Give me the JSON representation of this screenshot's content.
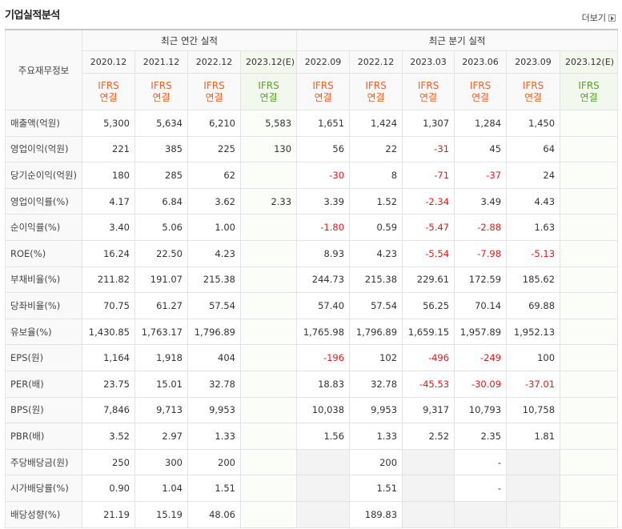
{
  "header": {
    "title": "기업실적분석",
    "more": "더보기"
  },
  "table": {
    "corner": "주요재무정보",
    "annual": {
      "label": "최근 연간 실적",
      "periods": [
        {
          "period": "2020.12",
          "standard": "IFRS",
          "consolidation": "연결"
        },
        {
          "period": "2021.12",
          "standard": "IFRS",
          "consolidation": "연결"
        },
        {
          "period": "2022.12",
          "standard": "IFRS",
          "consolidation": "연결"
        },
        {
          "period": "2023.12(E)",
          "standard": "IFRS",
          "consolidation": "연결"
        }
      ]
    },
    "quarterly": {
      "label": "최근 분기 실적",
      "periods": [
        {
          "period": "2022.09",
          "standard": "IFRS",
          "consolidation": "연결"
        },
        {
          "period": "2022.12",
          "standard": "IFRS",
          "consolidation": "연결"
        },
        {
          "period": "2023.03",
          "standard": "IFRS",
          "consolidation": "연결"
        },
        {
          "period": "2023.06",
          "standard": "IFRS",
          "consolidation": "연결"
        },
        {
          "period": "2023.09",
          "standard": "IFRS",
          "consolidation": "연결"
        },
        {
          "period": "2023.12(E)",
          "standard": "IFRS",
          "consolidation": "연결"
        }
      ]
    },
    "sections": [
      [
        {
          "label": "매출액(억원)",
          "values": [
            "5,300",
            "5,634",
            "6,210",
            "5,583",
            "1,651",
            "1,424",
            "1,307",
            "1,284",
            "1,450",
            null
          ]
        },
        {
          "label": "영업이익(억원)",
          "values": [
            "221",
            "385",
            "225",
            "130",
            "56",
            "22",
            "-31",
            "45",
            "64",
            null
          ]
        },
        {
          "label": "당기순이익(억원)",
          "values": [
            "180",
            "285",
            "62",
            null,
            "-30",
            "8",
            "-71",
            "-37",
            "24",
            null
          ]
        }
      ],
      [
        {
          "label": "영업이익률(%)",
          "values": [
            "4.17",
            "6.84",
            "3.62",
            "2.33",
            "3.39",
            "1.52",
            "-2.34",
            "3.49",
            "4.43",
            null
          ]
        },
        {
          "label": "순이익률(%)",
          "values": [
            "3.40",
            "5.06",
            "1.00",
            null,
            "-1.80",
            "0.59",
            "-5.47",
            "-2.88",
            "1.63",
            null
          ]
        },
        {
          "label": "ROE(%)",
          "values": [
            "16.24",
            "22.50",
            "4.23",
            null,
            "8.93",
            "4.23",
            "-5.54",
            "-7.98",
            "-5.13",
            null
          ]
        }
      ],
      [
        {
          "label": "부채비율(%)",
          "values": [
            "211.82",
            "191.07",
            "215.38",
            null,
            "244.73",
            "215.38",
            "229.61",
            "172.59",
            "185.62",
            null
          ]
        },
        {
          "label": "당좌비율(%)",
          "values": [
            "70.75",
            "61.27",
            "57.54",
            null,
            "57.40",
            "57.54",
            "56.25",
            "70.14",
            "69.88",
            null
          ]
        },
        {
          "label": "유보율(%)",
          "values": [
            "1,430.85",
            "1,763.17",
            "1,796.89",
            null,
            "1,765.98",
            "1,796.89",
            "1,659.15",
            "1,957.89",
            "1,952.13",
            null
          ]
        }
      ],
      [
        {
          "label": "EPS(원)",
          "values": [
            "1,164",
            "1,918",
            "404",
            null,
            "-196",
            "102",
            "-496",
            "-249",
            "100",
            null
          ]
        },
        {
          "label": "PER(배)",
          "values": [
            "23.75",
            "15.01",
            "32.78",
            null,
            "18.83",
            "32.78",
            "-45.53",
            "-30.09",
            "-37.01",
            null
          ]
        },
        {
          "label": "BPS(원)",
          "values": [
            "7,846",
            "9,713",
            "9,953",
            null,
            "10,038",
            "9,953",
            "9,317",
            "10,793",
            "10,758",
            null
          ]
        },
        {
          "label": "PBR(배)",
          "values": [
            "3.52",
            "2.97",
            "1.33",
            null,
            "1.56",
            "1.33",
            "2.52",
            "2.35",
            "1.81",
            null
          ]
        }
      ],
      [
        {
          "label": "주당배당금(원)",
          "values": [
            "250",
            "300",
            "200",
            null,
            null,
            "200",
            null,
            "-",
            null,
            null
          ]
        },
        {
          "label": "시가배당률(%)",
          "values": [
            "0.90",
            "1.04",
            "1.51",
            null,
            null,
            "1.51",
            null,
            "-",
            null,
            null
          ]
        },
        {
          "label": "배당성향(%)",
          "values": [
            "21.19",
            "15.19",
            "48.06",
            null,
            null,
            "189.83",
            null,
            null,
            null,
            null
          ]
        }
      ]
    ]
  }
}
